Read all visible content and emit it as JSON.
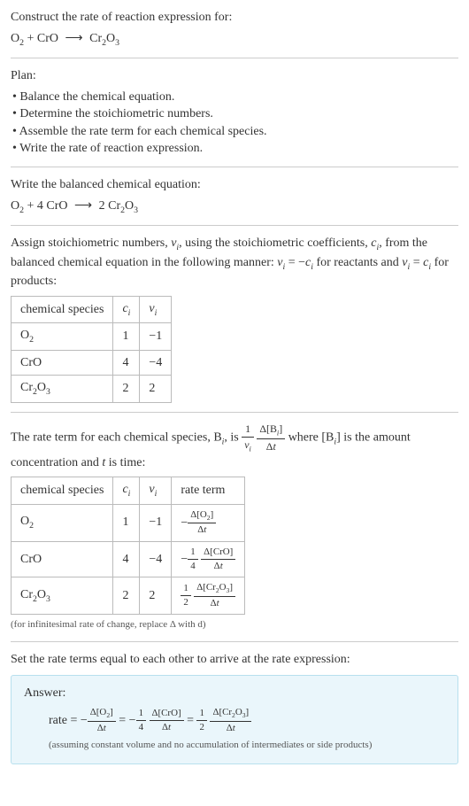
{
  "header": {
    "prompt": "Construct the rate of reaction expression for:",
    "equation_html": "O<sub>2</sub> + CrO <span class=\"arrow\">⟶</span> Cr<sub>2</sub>O<sub>3</sub>"
  },
  "plan": {
    "title": "Plan:",
    "items": [
      "Balance the chemical equation.",
      "Determine the stoichiometric numbers.",
      "Assemble the rate term for each chemical species.",
      "Write the rate of reaction expression."
    ]
  },
  "balanced": {
    "intro": "Write the balanced chemical equation:",
    "equation_html": "O<sub>2</sub> + 4 CrO <span class=\"arrow\">⟶</span> 2 Cr<sub>2</sub>O<sub>3</sub>"
  },
  "stoich": {
    "intro_html": "Assign stoichiometric numbers, <span class=\"italic\">ν<sub>i</sub></span>, using the stoichiometric coefficients, <span class=\"italic\">c<sub>i</sub></span>, from the balanced chemical equation in the following manner: <span class=\"italic\">ν<sub>i</sub></span> = −<span class=\"italic\">c<sub>i</sub></span> for reactants and <span class=\"italic\">ν<sub>i</sub></span> = <span class=\"italic\">c<sub>i</sub></span> for products:",
    "columns": [
      "chemical species",
      "c_i",
      "ν_i"
    ],
    "col_html": [
      "chemical species",
      "<span class=\"italic\">c<sub>i</sub></span>",
      "<span class=\"italic\">ν<sub>i</sub></span>"
    ],
    "rows": [
      {
        "species_html": "O<sub>2</sub>",
        "c": "1",
        "v": "−1"
      },
      {
        "species_html": "CrO",
        "c": "4",
        "v": "−4"
      },
      {
        "species_html": "Cr<sub>2</sub>O<sub>3</sub>",
        "c": "2",
        "v": "2"
      }
    ]
  },
  "rateterm": {
    "intro_html": "The rate term for each chemical species, B<sub><span class=\"italic\">i</span></sub>, is <span class=\"frac\"><span class=\"num\">1</span><span class=\"den\"><span class=\"italic\">ν<sub>i</sub></span></span></span> <span class=\"frac\"><span class=\"num\">Δ[B<sub><span class=\"italic\">i</span></sub>]</span><span class=\"den\">Δ<span class=\"italic\">t</span></span></span> where [B<sub><span class=\"italic\">i</span></sub>] is the amount concentration and <span class=\"italic\">t</span> is time:",
    "columns": [
      "chemical species",
      "c_i",
      "ν_i",
      "rate term"
    ],
    "col_html": [
      "chemical species",
      "<span class=\"italic\">c<sub>i</sub></span>",
      "<span class=\"italic\">ν<sub>i</sub></span>",
      "rate term"
    ],
    "rows": [
      {
        "species_html": "O<sub>2</sub>",
        "c": "1",
        "v": "−1",
        "term_html": "−<span class=\"frac frac-sm\"><span class=\"num\">Δ[O<sub>2</sub>]</span><span class=\"den\">Δ<span class=\"italic\">t</span></span></span>"
      },
      {
        "species_html": "CrO",
        "c": "4",
        "v": "−4",
        "term_html": "−<span class=\"frac frac-sm\"><span class=\"num\">1</span><span class=\"den\">4</span></span> <span class=\"frac frac-sm\"><span class=\"num\">Δ[CrO]</span><span class=\"den\">Δ<span class=\"italic\">t</span></span></span>"
      },
      {
        "species_html": "Cr<sub>2</sub>O<sub>3</sub>",
        "c": "2",
        "v": "2",
        "term_html": "<span class=\"frac frac-sm\"><span class=\"num\">1</span><span class=\"den\">2</span></span> <span class=\"frac frac-sm\"><span class=\"num\">Δ[Cr<sub>2</sub>O<sub>3</sub>]</span><span class=\"den\">Δ<span class=\"italic\">t</span></span></span>"
      }
    ],
    "footnote": "(for infinitesimal rate of change, replace Δ with d)"
  },
  "final": {
    "intro": "Set the rate terms equal to each other to arrive at the rate expression:",
    "answer_label": "Answer:",
    "answer_html": "rate = −<span class=\"frac frac-sm\"><span class=\"num\">Δ[O<sub>2</sub>]</span><span class=\"den\">Δ<span class=\"italic\">t</span></span></span> = −<span class=\"frac frac-sm\"><span class=\"num\">1</span><span class=\"den\">4</span></span> <span class=\"frac frac-sm\"><span class=\"num\">Δ[CrO]</span><span class=\"den\">Δ<span class=\"italic\">t</span></span></span> = <span class=\"frac frac-sm\"><span class=\"num\">1</span><span class=\"den\">2</span></span> <span class=\"frac frac-sm\"><span class=\"num\">Δ[Cr<sub>2</sub>O<sub>3</sub>]</span><span class=\"den\">Δ<span class=\"italic\">t</span></span></span>",
    "answer_note": "(assuming constant volume and no accumulation of intermediates or side products)"
  },
  "style": {
    "background": "#ffffff",
    "text_color": "#333333",
    "hr_color": "#cccccc",
    "answer_bg": "#eaf6fb",
    "answer_border": "#b8e0ee",
    "body_fontsize": 14,
    "note_fontsize": 11
  }
}
